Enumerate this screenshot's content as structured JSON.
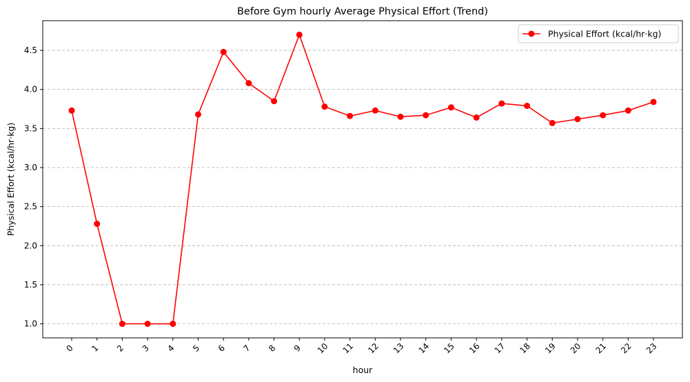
{
  "chart_data": {
    "type": "line",
    "title": "Before Gym hourly Average Physical Effort (Trend)",
    "xlabel": "hour",
    "ylabel": "Physical Effort (kcal/hr·kg)",
    "categories": [
      "0",
      "1",
      "2",
      "3",
      "4",
      "5",
      "6",
      "7",
      "8",
      "9",
      "10",
      "11",
      "12",
      "13",
      "14",
      "15",
      "16",
      "17",
      "18",
      "19",
      "20",
      "21",
      "22",
      "23"
    ],
    "series": [
      {
        "name": "Physical Effort (kcal/hr·kg)",
        "color": "#ff0000",
        "marker": "circle",
        "values": [
          3.73,
          2.28,
          1.0,
          1.0,
          1.0,
          3.68,
          4.48,
          4.08,
          3.85,
          4.7,
          3.78,
          3.66,
          3.73,
          3.65,
          3.67,
          3.77,
          3.64,
          3.82,
          3.79,
          3.57,
          3.62,
          3.67,
          3.73,
          3.84
        ]
      }
    ],
    "yticks": [
      "1.0",
      "1.5",
      "2.0",
      "2.5",
      "3.0",
      "3.5",
      "4.0",
      "4.5"
    ],
    "ylim": [
      0.82,
      4.88
    ],
    "grid": "horizontal dashed",
    "legend_position": "top-right"
  }
}
